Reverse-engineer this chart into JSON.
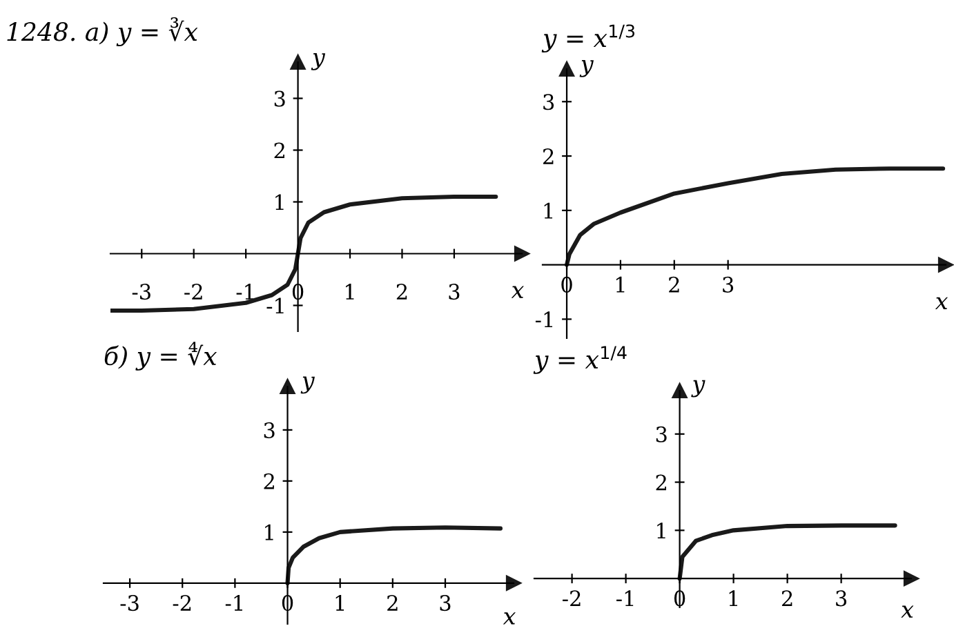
{
  "chart_data": [
    {
      "type": "line",
      "title": "1248. а) y = ∛x",
      "xlabel": "x",
      "ylabel": "y",
      "xlim": [
        -3.6,
        4.3
      ],
      "ylim": [
        -1.5,
        3.7
      ],
      "xticks": [
        -3,
        -2,
        -1,
        0,
        1,
        2,
        3
      ],
      "yticks": [
        -1,
        1,
        2,
        3
      ],
      "grid": false,
      "legend": false,
      "marker": "none",
      "line_style": "solid",
      "series": [
        {
          "color": "#1a1a1a",
          "x": [
            -3.6,
            -3,
            -2,
            -1,
            -0.5,
            -0.2,
            -0.05,
            0,
            0.05,
            0.2,
            0.5,
            1,
            2,
            3,
            3.8
          ],
          "values": [
            -1.1,
            -1.1,
            -1.07,
            -0.95,
            -0.8,
            -0.6,
            -0.3,
            0,
            0.3,
            0.6,
            0.8,
            0.95,
            1.07,
            1.1,
            1.1
          ]
        }
      ]
    },
    {
      "type": "line",
      "title": "y = x$^{1/3}$",
      "xlabel": "x",
      "ylabel": "y",
      "xlim": [
        -0.45,
        7.05
      ],
      "ylim": [
        -1.35,
        3.6
      ],
      "xticks": [
        0,
        1,
        2,
        3
      ],
      "yticks": [
        -1,
        1,
        2,
        3
      ],
      "grid": false,
      "legend": false,
      "marker": "none",
      "line_style": "solid",
      "series": [
        {
          "color": "#1a1a1a",
          "x": [
            0,
            0.05,
            0.25,
            0.5,
            1,
            2,
            3,
            4,
            5,
            6,
            7
          ],
          "values": [
            0,
            0.2,
            0.55,
            0.75,
            0.96,
            1.31,
            1.5,
            1.67,
            1.75,
            1.77,
            1.77
          ]
        }
      ]
    },
    {
      "type": "line",
      "title": "б) y = ∜x",
      "xlabel": "x",
      "ylabel": "y",
      "xlim": [
        -3.5,
        4.3
      ],
      "ylim": [
        -0.8,
        3.85
      ],
      "xticks": [
        -3,
        -2,
        -1,
        0,
        1,
        2,
        3
      ],
      "yticks": [
        1,
        2,
        3
      ],
      "grid": false,
      "legend": false,
      "marker": "none",
      "line_style": "solid",
      "series": [
        {
          "color": "#1a1a1a",
          "x": [
            0,
            0.02,
            0.1,
            0.3,
            0.6,
            1,
            2,
            3,
            4.05
          ],
          "values": [
            0,
            0.3,
            0.5,
            0.71,
            0.88,
            1.0,
            1.07,
            1.09,
            1.07
          ]
        }
      ]
    },
    {
      "type": "line",
      "title": "y = x$^{1/4}$",
      "xlabel": "x",
      "ylabel": "y",
      "xlim": [
        -2.7,
        4.3
      ],
      "ylim": [
        -0.6,
        3.9
      ],
      "xticks": [
        -2,
        -1,
        0,
        1,
        2,
        3
      ],
      "yticks": [
        1,
        2,
        3
      ],
      "grid": false,
      "legend": false,
      "marker": "none",
      "line_style": "solid",
      "series": [
        {
          "color": "#1a1a1a",
          "x": [
            0,
            0.05,
            0.3,
            0.6,
            1,
            2,
            3,
            4
          ],
          "values": [
            0,
            0.45,
            0.78,
            0.9,
            1.0,
            1.09,
            1.1,
            1.1
          ]
        }
      ]
    }
  ]
}
